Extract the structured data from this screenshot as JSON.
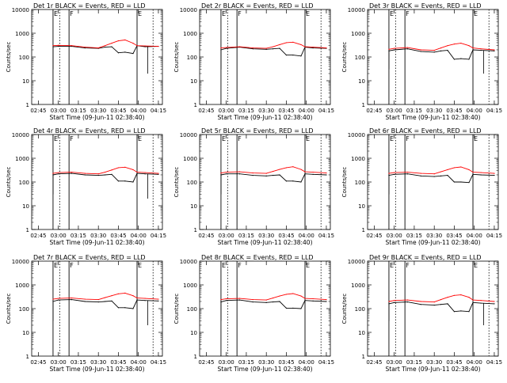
{
  "figure": {
    "shared": {
      "xlabel": "Start Time (09-Jun-11 02:38:40)",
      "ylabel": "Counts/sec",
      "x_ticks": [
        "02:45",
        "03:00",
        "03:15",
        "03:30",
        "03:45",
        "04:00",
        "04:15"
      ],
      "y_ticks": [
        "1",
        "10",
        "100",
        "1000",
        "10000"
      ],
      "y_scale": "log",
      "ylim": [
        1,
        10000
      ],
      "marker_letters": [
        "E",
        "F",
        "E"
      ],
      "marker_times": [
        "02:56",
        "03:08",
        "03:59"
      ],
      "dotted_times": [
        "03:01",
        "04:11"
      ],
      "colors": {
        "events": "#000000",
        "lld": "#ff0000",
        "axes": "#000000"
      }
    },
    "panels": [
      {
        "title": "Det 1r BLACK = Events, RED = LLD",
        "tail": "dip"
      },
      {
        "title": "Det 2r BLACK = Events, RED = LLD",
        "tail": "none"
      },
      {
        "title": "Det 3r BLACK = Events, RED = LLD",
        "tail": "dip"
      },
      {
        "title": "Det 4r BLACK = Events, RED = LLD",
        "tail": "dip"
      },
      {
        "title": "Det 5r BLACK = Events, RED = LLD",
        "tail": "none"
      },
      {
        "title": "Det 6r BLACK = Events, RED = LLD",
        "tail": "none"
      },
      {
        "title": "Det 7r BLACK = Events, RED = LLD",
        "tail": "dip"
      },
      {
        "title": "Det 8r BLACK = Events, RED = LLD",
        "tail": "none"
      },
      {
        "title": "Det 9r BLACK = Events, RED = LLD",
        "tail": "dip"
      }
    ]
  },
  "chart_data": [
    {
      "type": "line",
      "title": "Det 1r BLACK = Events, RED = LLD",
      "xlabel": "Start Time (09-Jun-11 02:38:40)",
      "ylabel": "Counts/sec",
      "y_scale": "log",
      "ylim": [
        1,
        10000
      ],
      "xlim": [
        "02:40",
        "04:18"
      ],
      "x": [
        "02:50",
        "02:56",
        "03:00",
        "03:10",
        "03:20",
        "03:30",
        "03:35",
        "03:40",
        "03:45",
        "03:50",
        "03:56",
        "03:59",
        "04:05",
        "04:15"
      ],
      "series": [
        {
          "name": "Events",
          "color": "#000000",
          "values": [
            null,
            270,
            280,
            280,
            240,
            230,
            260,
            270,
            150,
            160,
            140,
            300,
            270,
            280
          ]
        },
        {
          "name": "LLD",
          "color": "#ff0000",
          "values": [
            null,
            300,
            310,
            300,
            260,
            240,
            300,
            380,
            480,
            520,
            380,
            300,
            290,
            280
          ]
        }
      ]
    },
    {
      "type": "line",
      "title": "Det 2r BLACK = Events, RED = LLD",
      "xlabel": "Start Time (09-Jun-11 02:38:40)",
      "ylabel": "Counts/sec",
      "y_scale": "log",
      "ylim": [
        1,
        10000
      ],
      "xlim": [
        "02:40",
        "04:18"
      ],
      "x": [
        "02:50",
        "02:56",
        "03:00",
        "03:10",
        "03:20",
        "03:30",
        "03:35",
        "03:40",
        "03:45",
        "03:50",
        "03:56",
        "03:59",
        "04:05",
        "04:15"
      ],
      "series": [
        {
          "name": "Events",
          "color": "#000000",
          "values": [
            null,
            200,
            230,
            260,
            220,
            210,
            220,
            230,
            120,
            120,
            110,
            260,
            240,
            230
          ]
        },
        {
          "name": "LLD",
          "color": "#ff0000",
          "values": [
            null,
            240,
            250,
            270,
            240,
            230,
            270,
            330,
            400,
            420,
            330,
            270,
            260,
            240
          ]
        }
      ]
    },
    {
      "type": "line",
      "title": "Det 3r BLACK = Events, RED = LLD",
      "xlabel": "Start Time (09-Jun-11 02:38:40)",
      "ylabel": "Counts/sec",
      "y_scale": "log",
      "ylim": [
        1,
        10000
      ],
      "xlim": [
        "02:40",
        "04:18"
      ],
      "x": [
        "02:50",
        "02:56",
        "03:00",
        "03:10",
        "03:20",
        "03:30",
        "03:35",
        "03:40",
        "03:45",
        "03:50",
        "03:56",
        "03:59",
        "04:05",
        "04:15"
      ],
      "series": [
        {
          "name": "Events",
          "color": "#000000",
          "values": [
            null,
            180,
            200,
            220,
            170,
            160,
            180,
            190,
            80,
            85,
            80,
            200,
            190,
            180
          ]
        },
        {
          "name": "LLD",
          "color": "#ff0000",
          "values": [
            null,
            210,
            230,
            250,
            200,
            190,
            240,
            300,
            350,
            380,
            300,
            240,
            220,
            200
          ]
        }
      ]
    },
    {
      "type": "line",
      "title": "Det 4r BLACK = Events, RED = LLD",
      "xlabel": "Start Time (09-Jun-11 02:38:40)",
      "ylabel": "Counts/sec",
      "y_scale": "log",
      "ylim": [
        1,
        10000
      ],
      "xlim": [
        "02:40",
        "04:18"
      ],
      "x": [
        "02:50",
        "02:56",
        "03:00",
        "03:10",
        "03:20",
        "03:30",
        "03:35",
        "03:40",
        "03:45",
        "03:50",
        "03:56",
        "03:59",
        "04:05",
        "04:15"
      ],
      "series": [
        {
          "name": "Events",
          "color": "#000000",
          "values": [
            null,
            200,
            220,
            230,
            200,
            190,
            200,
            210,
            110,
            110,
            100,
            230,
            220,
            210
          ]
        },
        {
          "name": "LLD",
          "color": "#ff0000",
          "values": [
            null,
            230,
            250,
            260,
            230,
            220,
            260,
            320,
            400,
            420,
            330,
            260,
            250,
            230
          ]
        }
      ]
    },
    {
      "type": "line",
      "title": "Det 5r BLACK = Events, RED = LLD",
      "xlabel": "Start Time (09-Jun-11 02:38:40)",
      "ylabel": "Counts/sec",
      "y_scale": "log",
      "ylim": [
        1,
        10000
      ],
      "xlim": [
        "02:40",
        "04:18"
      ],
      "x": [
        "02:50",
        "02:56",
        "03:00",
        "03:10",
        "03:20",
        "03:30",
        "03:35",
        "03:40",
        "03:45",
        "03:50",
        "03:56",
        "03:59",
        "04:05",
        "04:15"
      ],
      "series": [
        {
          "name": "Events",
          "color": "#000000",
          "values": [
            null,
            200,
            220,
            220,
            190,
            180,
            190,
            200,
            110,
            110,
            100,
            220,
            210,
            200
          ]
        },
        {
          "name": "LLD",
          "color": "#ff0000",
          "values": [
            null,
            240,
            260,
            270,
            240,
            230,
            280,
            340,
            400,
            440,
            340,
            270,
            260,
            240
          ]
        }
      ]
    },
    {
      "type": "line",
      "title": "Det 6r BLACK = Events, RED = LLD",
      "xlabel": "Start Time (09-Jun-11 02:38:40)",
      "ylabel": "Counts/sec",
      "y_scale": "log",
      "ylim": [
        1,
        10000
      ],
      "xlim": [
        "02:40",
        "04:18"
      ],
      "x": [
        "02:50",
        "02:56",
        "03:00",
        "03:10",
        "03:20",
        "03:30",
        "03:35",
        "03:40",
        "03:45",
        "03:50",
        "03:56",
        "03:59",
        "04:05",
        "04:15"
      ],
      "series": [
        {
          "name": "Events",
          "color": "#000000",
          "values": [
            null,
            190,
            210,
            220,
            180,
            170,
            180,
            190,
            100,
            100,
            95,
            210,
            200,
            190
          ]
        },
        {
          "name": "LLD",
          "color": "#ff0000",
          "values": [
            null,
            230,
            250,
            260,
            230,
            220,
            270,
            330,
            400,
            430,
            330,
            260,
            250,
            230
          ]
        }
      ]
    },
    {
      "type": "line",
      "title": "Det 7r BLACK = Events, RED = LLD",
      "xlabel": "Start Time (09-Jun-11 02:38:40)",
      "ylabel": "Counts/sec",
      "y_scale": "log",
      "ylim": [
        1,
        10000
      ],
      "xlim": [
        "02:40",
        "04:18"
      ],
      "x": [
        "02:50",
        "02:56",
        "03:00",
        "03:10",
        "03:20",
        "03:30",
        "03:35",
        "03:40",
        "03:45",
        "03:50",
        "03:56",
        "03:59",
        "04:05",
        "04:15"
      ],
      "series": [
        {
          "name": "Events",
          "color": "#000000",
          "values": [
            null,
            200,
            230,
            240,
            200,
            190,
            200,
            210,
            110,
            110,
            100,
            230,
            220,
            210
          ]
        },
        {
          "name": "LLD",
          "color": "#ff0000",
          "values": [
            null,
            250,
            270,
            280,
            250,
            240,
            290,
            350,
            420,
            450,
            350,
            280,
            270,
            250
          ]
        }
      ]
    },
    {
      "type": "line",
      "title": "Det 8r BLACK = Events, RED = LLD",
      "xlabel": "Start Time (09-Jun-11 02:38:40)",
      "ylabel": "Counts/sec",
      "y_scale": "log",
      "ylim": [
        1,
        10000
      ],
      "xlim": [
        "02:40",
        "04:18"
      ],
      "x": [
        "02:50",
        "02:56",
        "03:00",
        "03:10",
        "03:20",
        "03:30",
        "03:35",
        "03:40",
        "03:45",
        "03:50",
        "03:56",
        "03:59",
        "04:05",
        "04:15"
      ],
      "series": [
        {
          "name": "Events",
          "color": "#000000",
          "values": [
            null,
            190,
            220,
            230,
            190,
            180,
            190,
            200,
            105,
            105,
            100,
            220,
            210,
            200
          ]
        },
        {
          "name": "LLD",
          "color": "#ff0000",
          "values": [
            null,
            240,
            260,
            270,
            240,
            230,
            280,
            340,
            400,
            430,
            340,
            270,
            260,
            240
          ]
        }
      ]
    },
    {
      "type": "line",
      "title": "Det 9r BLACK = Events, RED = LLD",
      "xlabel": "Start Time (09-Jun-11 02:38:40)",
      "ylabel": "Counts/sec",
      "y_scale": "log",
      "ylim": [
        1,
        10000
      ],
      "xlim": [
        "02:40",
        "04:18"
      ],
      "x": [
        "02:50",
        "02:56",
        "03:00",
        "03:10",
        "03:20",
        "03:30",
        "03:35",
        "03:40",
        "03:45",
        "03:50",
        "03:56",
        "03:59",
        "04:05",
        "04:15"
      ],
      "series": [
        {
          "name": "Events",
          "color": "#000000",
          "values": [
            null,
            160,
            180,
            190,
            150,
            140,
            150,
            160,
            75,
            80,
            75,
            180,
            170,
            160
          ]
        },
        {
          "name": "LLD",
          "color": "#ff0000",
          "values": [
            null,
            200,
            220,
            230,
            200,
            190,
            240,
            300,
            360,
            380,
            300,
            230,
            220,
            200
          ]
        }
      ]
    }
  ]
}
